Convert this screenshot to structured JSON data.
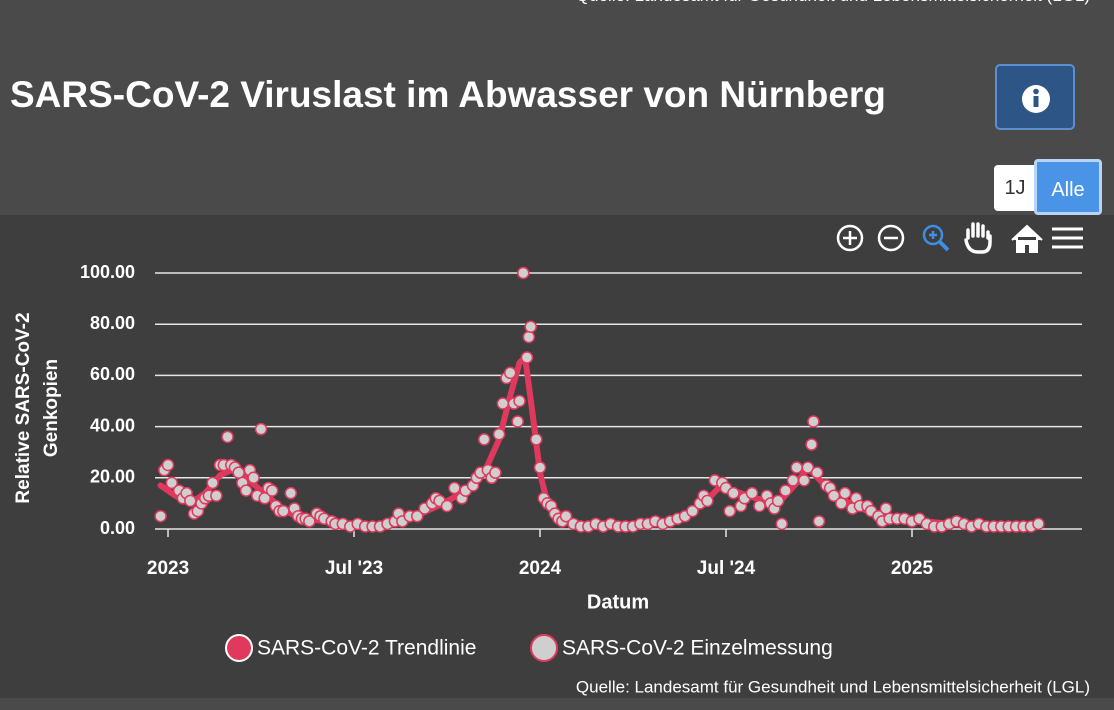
{
  "header": {
    "title": "SARS-CoV-2 Viruslast im Abwasser von Nürnberg",
    "buttons": [
      "1J",
      "Alle"
    ]
  },
  "chart_data": {
    "type": "line",
    "x_label": "Datum",
    "y_label": [
      "Relative SARS-CoV-2",
      "Genkopien"
    ],
    "source": "Quelle: Landesamt für Gesundheit und Lebensmittelsicherheit (LGL)",
    "xlim": [
      2022.965,
      2025.457
    ],
    "xticks": [
      2023,
      {
        "value": 2023.5,
        "label": "Jul '23"
      },
      2024,
      {
        "value": 2024.5,
        "label": "Jul '24"
      },
      2025
    ],
    "ylim": [
      0,
      100
    ],
    "yticks": [
      {
        "value": 0,
        "label": "0.00"
      },
      {
        "value": 20,
        "label": "20.00"
      },
      {
        "value": 40,
        "label": "40.00"
      },
      {
        "value": 60,
        "label": "60.00"
      },
      {
        "value": 80,
        "label": "80.00"
      },
      {
        "value": 100,
        "label": "100.00"
      }
    ],
    "grid": true,
    "legend": "bottom",
    "series": [
      {
        "name": "SARS-CoV-2 Trendlinie",
        "mode": "line",
        "color": "#e0395d",
        "x": [
          2022.98,
          2023.02,
          2023.06,
          2023.1,
          2023.14,
          2023.17,
          2023.21,
          2023.25,
          2023.29,
          2023.33,
          2023.38,
          2023.44,
          2023.5,
          2023.56,
          2023.62,
          2023.68,
          2023.74,
          2023.8,
          2023.85,
          2023.89,
          2023.92,
          2023.945,
          2023.96,
          2023.98,
          2024.0,
          2024.02,
          2024.05,
          2024.1,
          2024.2,
          2024.3,
          2024.38,
          2024.44,
          2024.48,
          2024.52,
          2024.58,
          2024.64,
          2024.69,
          2024.72,
          2024.76,
          2024.82,
          2024.88,
          2024.94,
          2025.0,
          2025.1,
          2025.2,
          2025.34
        ],
        "values": [
          17,
          13,
          10,
          14,
          21,
          23,
          20,
          15,
          10,
          6,
          4,
          2.5,
          1.5,
          1.5,
          3,
          6,
          10,
          15,
          22,
          35,
          52,
          65,
          67,
          45,
          22,
          10,
          4,
          2,
          1,
          2,
          4,
          10,
          16,
          15,
          12,
          10,
          18,
          24,
          18,
          11,
          7,
          5,
          3.5,
          2,
          1,
          1.5
        ]
      },
      {
        "name": "SARS-CoV-2 Einzelmessung",
        "mode": "markers",
        "color": "#cfcfcf",
        "edge_color": "#e0395d",
        "x": [
          2022.98,
          2022.99,
          2023.0,
          2023.01,
          2023.03,
          2023.04,
          2023.05,
          2023.06,
          2023.07,
          2023.08,
          2023.09,
          2023.1,
          2023.11,
          2023.12,
          2023.13,
          2023.14,
          2023.15,
          2023.16,
          2023.17,
          2023.18,
          2023.19,
          2023.2,
          2023.21,
          2023.22,
          2023.23,
          2023.24,
          2023.25,
          2023.26,
          2023.27,
          2023.28,
          2023.29,
          2023.3,
          2023.31,
          2023.33,
          2023.34,
          2023.35,
          2023.36,
          2023.37,
          2023.38,
          2023.4,
          2023.41,
          2023.42,
          2023.44,
          2023.45,
          2023.47,
          2023.49,
          2023.51,
          2023.53,
          2023.55,
          2023.57,
          2023.59,
          2023.61,
          2023.62,
          2023.63,
          2023.65,
          2023.67,
          2023.69,
          2023.71,
          2023.72,
          2023.73,
          2023.75,
          2023.77,
          2023.79,
          2023.8,
          2023.82,
          2023.83,
          2023.84,
          2023.85,
          2023.86,
          2023.87,
          2023.88,
          2023.89,
          2023.9,
          2023.91,
          2023.92,
          2023.93,
          2023.94,
          2023.945,
          2023.955,
          2023.965,
          2023.97,
          2023.975,
          2023.99,
          2024.0,
          2024.01,
          2024.02,
          2024.03,
          2024.04,
          2024.05,
          2024.06,
          2024.07,
          2024.09,
          2024.11,
          2024.13,
          2024.15,
          2024.17,
          2024.19,
          2024.21,
          2024.23,
          2024.25,
          2024.27,
          2024.29,
          2024.31,
          2024.33,
          2024.35,
          2024.37,
          2024.39,
          2024.41,
          2024.43,
          2024.44,
          2024.45,
          2024.47,
          2024.49,
          2024.5,
          2024.51,
          2024.52,
          2024.54,
          2024.55,
          2024.57,
          2024.59,
          2024.61,
          2024.62,
          2024.63,
          2024.64,
          2024.65,
          2024.66,
          2024.68,
          2024.69,
          2024.71,
          2024.72,
          2024.73,
          2024.735,
          2024.745,
          2024.75,
          2024.77,
          2024.78,
          2024.79,
          2024.81,
          2024.82,
          2024.84,
          2024.85,
          2024.86,
          2024.88,
          2024.89,
          2024.91,
          2024.92,
          2024.93,
          2024.94,
          2024.96,
          2024.98,
          2025.0,
          2025.02,
          2025.04,
          2025.06,
          2025.08,
          2025.1,
          2025.12,
          2025.14,
          2025.16,
          2025.18,
          2025.2,
          2025.22,
          2025.24,
          2025.26,
          2025.28,
          2025.3,
          2025.32,
          2025.34
        ],
        "values": [
          5,
          23,
          25,
          18,
          15,
          12,
          14,
          11,
          6,
          7,
          10,
          12,
          13,
          18,
          13,
          25,
          25,
          36,
          25,
          24,
          22,
          18,
          15,
          23,
          20,
          13,
          39,
          12,
          16,
          15,
          9,
          7,
          7,
          14,
          8,
          5,
          4,
          4,
          3,
          6,
          5,
          4,
          3,
          2,
          2,
          1,
          2,
          1,
          1,
          1,
          2,
          3,
          6,
          3,
          5,
          5,
          8,
          10,
          12,
          11,
          9,
          16,
          12,
          15,
          17,
          20,
          22,
          35,
          23,
          20,
          22,
          37,
          49,
          59,
          61,
          49,
          42,
          50,
          100,
          67,
          75,
          79,
          35,
          24,
          12,
          10,
          9,
          6,
          4,
          3,
          5,
          2,
          1,
          1,
          2,
          1,
          2,
          1,
          1,
          1,
          2,
          2,
          3,
          2,
          3,
          4,
          5,
          7,
          10,
          13,
          11,
          19,
          18,
          16,
          7,
          14,
          9,
          12,
          14,
          9,
          13,
          10,
          8,
          11,
          2,
          15,
          19,
          24,
          19,
          24,
          33,
          42,
          22,
          3,
          17,
          16,
          13,
          10,
          14,
          8,
          12,
          9,
          9,
          7,
          5,
          3,
          8,
          4,
          4,
          4,
          3,
          4,
          2,
          1,
          1,
          2,
          3,
          2,
          1,
          2,
          1,
          1,
          1,
          1,
          1,
          1,
          1,
          2
        ]
      }
    ]
  }
}
